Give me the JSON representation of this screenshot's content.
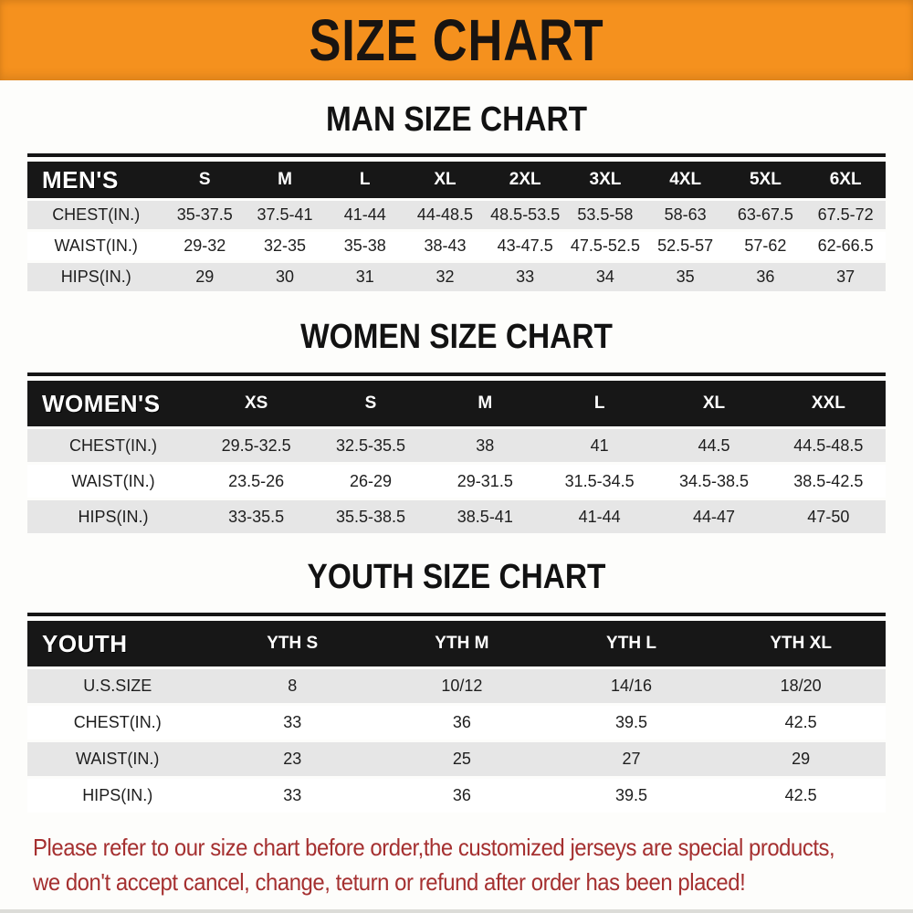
{
  "banner": {
    "title": "SIZE CHART"
  },
  "colors": {
    "banner-bg": "#f5911e",
    "header-bg": "#171717",
    "stripe": "#e6e6e6",
    "footer-text": "#a53030"
  },
  "sections": [
    {
      "title": "MAN SIZE CHART",
      "corner": "MEN'S",
      "columns": [
        "S",
        "M",
        "L",
        "XL",
        "2XL",
        "3XL",
        "4XL",
        "5XL",
        "6XL"
      ],
      "rows": [
        {
          "label": "CHEST(IN.)",
          "values": [
            "35-37.5",
            "37.5-41",
            "41-44",
            "44-48.5",
            "48.5-53.5",
            "53.5-58",
            "58-63",
            "63-67.5",
            "67.5-72"
          ]
        },
        {
          "label": "WAIST(IN.)",
          "values": [
            "29-32",
            "32-35",
            "35-38",
            "38-43",
            "43-47.5",
            "47.5-52.5",
            "52.5-57",
            "57-62",
            "62-66.5"
          ]
        },
        {
          "label": "HIPS(IN.)",
          "values": [
            "29",
            "30",
            "31",
            "32",
            "33",
            "34",
            "35",
            "36",
            "37"
          ]
        }
      ]
    },
    {
      "title": "WOMEN SIZE CHART",
      "corner": "WOMEN'S",
      "columns": [
        "XS",
        "S",
        "M",
        "L",
        "XL",
        "XXL"
      ],
      "rows": [
        {
          "label": "CHEST(IN.)",
          "values": [
            "29.5-32.5",
            "32.5-35.5",
            "38",
            "41",
            "44.5",
            "44.5-48.5"
          ]
        },
        {
          "label": "WAIST(IN.)",
          "values": [
            "23.5-26",
            "26-29",
            "29-31.5",
            "31.5-34.5",
            "34.5-38.5",
            "38.5-42.5"
          ]
        },
        {
          "label": "HIPS(IN.)",
          "values": [
            "33-35.5",
            "35.5-38.5",
            "38.5-41",
            "41-44",
            "44-47",
            "47-50"
          ]
        }
      ]
    },
    {
      "title": "YOUTH SIZE CHART",
      "corner": "YOUTH",
      "columns": [
        "YTH S",
        "YTH M",
        "YTH L",
        "YTH XL"
      ],
      "rows": [
        {
          "label": "U.S.SIZE",
          "values": [
            "8",
            "10/12",
            "14/16",
            "18/20"
          ]
        },
        {
          "label": "CHEST(IN.)",
          "values": [
            "33",
            "36",
            "39.5",
            "42.5"
          ]
        },
        {
          "label": "WAIST(IN.)",
          "values": [
            "23",
            "25",
            "27",
            "29"
          ]
        },
        {
          "label": "HIPS(IN.)",
          "values": [
            "33",
            "36",
            "39.5",
            "42.5"
          ]
        }
      ]
    }
  ],
  "footer": {
    "line1": "Please refer to our size chart before order,the customized jerseys are special products,",
    "line2": "we don't accept cancel, change, teturn or refund after order has been placed!"
  }
}
